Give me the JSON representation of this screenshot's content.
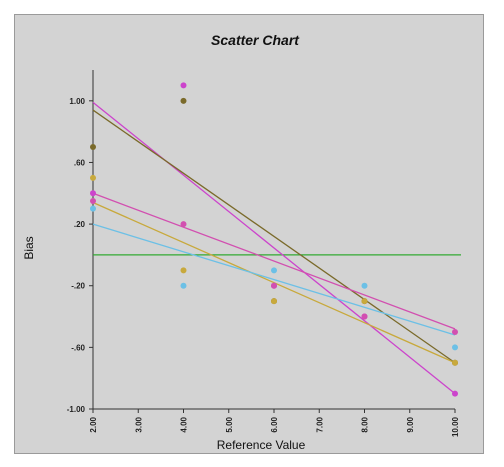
{
  "chart_data": {
    "type": "scatter",
    "title": "Scatter Chart",
    "xlabel": "Reference Value",
    "ylabel": "Bias",
    "xlim": [
      2,
      10
    ],
    "ylim": [
      -1,
      1.2
    ],
    "x_ticks": [
      2,
      3,
      4,
      5,
      6,
      7,
      8,
      9,
      10
    ],
    "x_tick_labels": [
      "2.00",
      "3.00",
      "4.00",
      "5.00",
      "6.00",
      "7.00",
      "8.00",
      "9.00",
      "10.00"
    ],
    "y_ticks": [
      1.0,
      0.6,
      0.2,
      -0.2,
      -0.6,
      -1.0
    ],
    "y_tick_labels": [
      "1.00",
      ".60",
      ".20",
      "-.20",
      "-.60",
      "-1.00"
    ],
    "grid": false,
    "reference_line": {
      "y": 0,
      "color": "#33aa33"
    },
    "series": [
      {
        "color": "#cc44cc",
        "points": [
          [
            2,
            0.4
          ],
          [
            4,
            1.1
          ],
          [
            6,
            -0.2
          ],
          [
            8,
            -0.4
          ],
          [
            10,
            -0.9
          ]
        ],
        "fit": [
          [
            2,
            0.99
          ],
          [
            10,
            -0.9
          ]
        ]
      },
      {
        "color": "#7a6a2a",
        "points": [
          [
            2,
            0.7
          ],
          [
            4,
            1.0
          ],
          [
            6,
            -0.3
          ],
          [
            8,
            -0.3
          ],
          [
            10,
            -0.7
          ]
        ],
        "fit": [
          [
            2,
            0.94
          ],
          [
            10,
            -0.7
          ]
        ]
      },
      {
        "color": "#d24fb0",
        "points": [
          [
            2,
            0.35
          ],
          [
            4,
            0.2
          ],
          [
            6,
            -0.2
          ],
          [
            8,
            -0.4
          ],
          [
            10,
            -0.5
          ]
        ],
        "fit": [
          [
            2,
            0.4
          ],
          [
            10,
            -0.48
          ]
        ]
      },
      {
        "color": "#c8a93c",
        "points": [
          [
            2,
            0.5
          ],
          [
            4,
            -0.1
          ],
          [
            6,
            -0.3
          ],
          [
            8,
            -0.3
          ],
          [
            10,
            -0.7
          ]
        ],
        "fit": [
          [
            2,
            0.34
          ],
          [
            10,
            -0.7
          ]
        ]
      },
      {
        "color": "#6cc0e6",
        "points": [
          [
            2,
            0.3
          ],
          [
            4,
            -0.2
          ],
          [
            6,
            -0.1
          ],
          [
            8,
            -0.2
          ],
          [
            10,
            -0.6
          ]
        ],
        "fit": [
          [
            2,
            0.2
          ],
          [
            10,
            -0.52
          ]
        ]
      }
    ]
  }
}
